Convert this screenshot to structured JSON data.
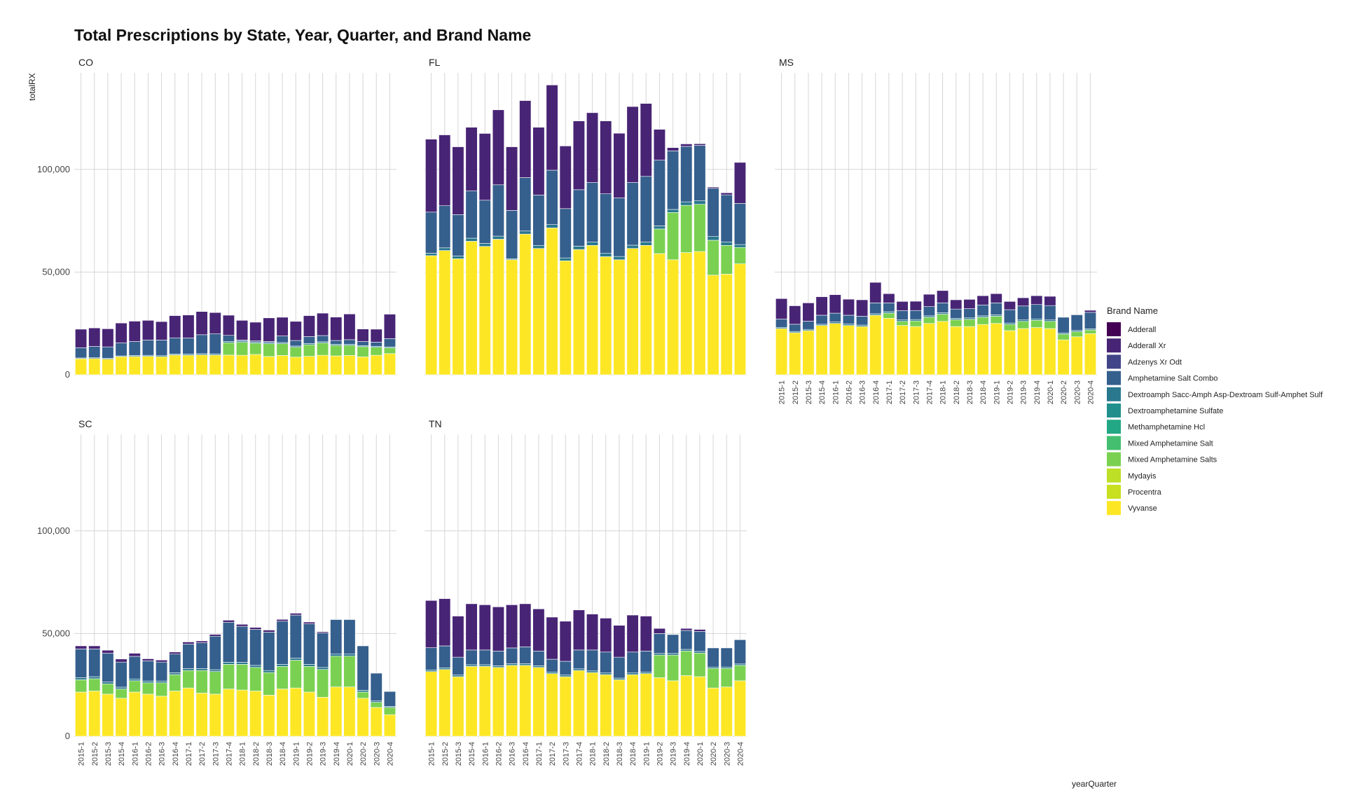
{
  "chart_data": {
    "type": "bar",
    "stacked": true,
    "title": "Total Prescriptions by State, Year, Quarter, and Brand Name",
    "xlabel": "yearQuarter",
    "ylabel": "totalRX",
    "ylim": [
      0,
      147000
    ],
    "yticks": [
      0,
      50000,
      100000
    ],
    "ytick_labels": [
      "0",
      "50,000",
      "100,000"
    ],
    "grid": true,
    "legend": {
      "title": "Brand Name",
      "position": "right",
      "entries": [
        {
          "name": "Adderall",
          "color": "#440154"
        },
        {
          "name": "Adderall Xr",
          "color": "#482475"
        },
        {
          "name": "Adzenys Xr Odt",
          "color": "#414487"
        },
        {
          "name": "Amphetamine Salt Combo",
          "color": "#355F8D"
        },
        {
          "name": "Dextroamph Sacc-Amph Asp-Dextroam Sulf-Amphet Sulf",
          "color": "#2A788E"
        },
        {
          "name": "Dextroamphetamine Sulfate",
          "color": "#21908D"
        },
        {
          "name": "Methamphetamine Hcl",
          "color": "#22A884"
        },
        {
          "name": "Mixed Amphetamine Salt",
          "color": "#44BF70"
        },
        {
          "name": "Mixed Amphetamine Salts",
          "color": "#7AD151"
        },
        {
          "name": "Mydayis",
          "color": "#BDDF26"
        },
        {
          "name": "Procentra",
          "color": "#C8E020"
        },
        {
          "name": "Vyvanse",
          "color": "#FDE725"
        }
      ]
    },
    "categories": [
      "2015-1",
      "2015-2",
      "2015-3",
      "2015-4",
      "2016-1",
      "2016-2",
      "2016-3",
      "2016-4",
      "2017-1",
      "2017-2",
      "2017-3",
      "2017-4",
      "2018-1",
      "2018-2",
      "2018-3",
      "2018-4",
      "2019-1",
      "2019-2",
      "2019-3",
      "2019-4",
      "2020-1",
      "2020-2",
      "2020-3",
      "2020-4"
    ],
    "panels": [
      {
        "state": "CO",
        "series": {
          "Vyvanse": [
            7800,
            7900,
            7600,
            8800,
            8900,
            9000,
            8800,
            9600,
            9500,
            9700,
            9600,
            9600,
            9500,
            9900,
            8900,
            9400,
            8600,
            9000,
            9500,
            9200,
            9400,
            8700,
            9500,
            10300
          ],
          "Mixed Amphetamine Salts": [
            0,
            0,
            0,
            0,
            0,
            0,
            0,
            0,
            0,
            0,
            0,
            6000,
            6300,
            5500,
            6200,
            5700,
            4800,
            5600,
            6000,
            5100,
            4900,
            5000,
            3900,
            2800
          ],
          "Dextroamph Sacc-Amph Asp-Dextroam Sulf-Amphet Sulf": [
            400,
            400,
            400,
            400,
            500,
            500,
            500,
            500,
            600,
            600,
            600,
            600,
            600,
            600,
            600,
            600,
            600,
            600,
            600,
            600,
            600,
            500,
            500,
            500
          ],
          "Amphetamine Salt Combo": [
            5000,
            5500,
            5600,
            6300,
            6800,
            7400,
            7600,
            7900,
            7800,
            9200,
            9700,
            3000,
            500,
            500,
            500,
            3200,
            2700,
            3400,
            3000,
            1800,
            2200,
            2000,
            2000,
            4000
          ],
          "Adderall Xr": [
            9000,
            9000,
            8800,
            9700,
            9900,
            9600,
            9000,
            10800,
            11200,
            11300,
            10400,
            9800,
            9600,
            9100,
            11500,
            9100,
            9300,
            10200,
            10900,
            11400,
            12500,
            6100,
            6300,
            11900
          ]
        }
      },
      {
        "state": "FL",
        "series": {
          "Vyvanse": [
            58000,
            60500,
            56500,
            65000,
            62500,
            66000,
            56000,
            68500,
            61500,
            71500,
            55500,
            61000,
            63000,
            57500,
            56000,
            61500,
            63000,
            59000,
            56000,
            59500,
            60000,
            48500,
            49000,
            54000
          ],
          "Mixed Amphetamine Salts": [
            0,
            0,
            0,
            0,
            0,
            0,
            0,
            0,
            0,
            0,
            0,
            0,
            0,
            0,
            0,
            0,
            0,
            12000,
            23000,
            23000,
            23000,
            17000,
            14000,
            8000
          ],
          "Dextroamph Sacc-Amph Asp-Dextroam Sulf-Amphet Sulf": [
            1200,
            1300,
            1300,
            1500,
            1500,
            1500,
            500,
            1500,
            1500,
            1600,
            1400,
            1600,
            1600,
            1600,
            1600,
            1600,
            1600,
            1500,
            1500,
            1700,
            1700,
            1800,
            1600,
            1400
          ],
          "Amphetamine Salt Combo": [
            20000,
            20500,
            20200,
            23000,
            21000,
            25000,
            23500,
            26000,
            24500,
            26500,
            24000,
            27500,
            29000,
            29000,
            28500,
            30500,
            32000,
            32000,
            28500,
            27000,
            27000,
            23500,
            23000,
            20000
          ],
          "Adderall Xr": [
            35500,
            34500,
            33000,
            31000,
            32500,
            36500,
            31000,
            37500,
            33000,
            41500,
            30500,
            33500,
            34000,
            35500,
            31500,
            37000,
            35500,
            15000,
            1600,
            1200,
            800,
            600,
            1000,
            20000
          ]
        }
      },
      {
        "state": "MS",
        "series": {
          "Vyvanse": [
            22500,
            20500,
            21500,
            24000,
            25000,
            24000,
            23500,
            29000,
            27500,
            24000,
            23500,
            25000,
            26000,
            23500,
            23500,
            24500,
            25000,
            21500,
            22500,
            23000,
            22500,
            17000,
            18500,
            20000
          ],
          "Mixed Amphetamine Salts": [
            0,
            0,
            0,
            0,
            0,
            0,
            0,
            0,
            2500,
            2000,
            2700,
            3000,
            3500,
            3300,
            3500,
            3500,
            3500,
            3000,
            3500,
            3500,
            3500,
            2800,
            2500,
            1800
          ],
          "Dextroamph Sacc-Amph Asp-Dextroam Sulf-Amphet Sulf": [
            600,
            600,
            600,
            600,
            700,
            700,
            700,
            700,
            700,
            700,
            700,
            700,
            700,
            700,
            700,
            700,
            700,
            700,
            700,
            700,
            700,
            600,
            600,
            600
          ],
          "Amphetamine Salt Combo": [
            4000,
            3500,
            4000,
            4400,
            4300,
            4300,
            4300,
            5300,
            4300,
            4500,
            4400,
            4500,
            4800,
            4500,
            4500,
            5300,
            5800,
            6500,
            6800,
            7000,
            7000,
            7600,
            7600,
            8000
          ],
          "Adderall Xr": [
            10000,
            9000,
            8900,
            9000,
            9000,
            7800,
            8000,
            10000,
            4500,
            4500,
            4500,
            6000,
            6000,
            4500,
            4500,
            4500,
            4500,
            4000,
            4000,
            4300,
            4500,
            0,
            0,
            1000
          ]
        }
      },
      {
        "state": "SC",
        "series": {
          "Vyvanse": [
            21500,
            22000,
            20500,
            18500,
            21500,
            20500,
            19500,
            22000,
            23500,
            21000,
            20500,
            23000,
            22500,
            22000,
            20000,
            23000,
            23500,
            21500,
            19000,
            24000,
            24000,
            18500,
            14000,
            10500
          ],
          "Mixed Amphetamine Salts": [
            6000,
            6000,
            5000,
            4500,
            5500,
            5500,
            6500,
            8000,
            8500,
            11000,
            11000,
            12000,
            12500,
            11500,
            11000,
            11000,
            13500,
            12500,
            13500,
            15000,
            15000,
            3000,
            2500,
            3500
          ],
          "Dextroamph Sacc-Amph Asp-Dextroam Sulf-Amphet Sulf": [
            1000,
            1000,
            900,
            900,
            900,
            900,
            900,
            900,
            900,
            900,
            900,
            1000,
            1000,
            1000,
            1000,
            1000,
            1000,
            1000,
            1000,
            1000,
            1000,
            900,
            700,
            500
          ],
          "Amphetamine Salt Combo": [
            14000,
            13500,
            14000,
            12200,
            11000,
            9800,
            9200,
            9100,
            12000,
            12600,
            16300,
            19500,
            17500,
            17500,
            18700,
            21000,
            21000,
            19700,
            16800,
            16800,
            16800,
            21600,
            13500,
            7300
          ],
          "Adderall Xr": [
            1500,
            1500,
            1500,
            1500,
            1500,
            1000,
            1000,
            1000,
            1000,
            900,
            900,
            1000,
            1000,
            1000,
            1000,
            900,
            900,
            900,
            600,
            0,
            0,
            0,
            0,
            0
          ]
        }
      },
      {
        "state": "TN",
        "series": {
          "Vyvanse": [
            31500,
            32500,
            29000,
            34000,
            34000,
            33500,
            34500,
            34500,
            33500,
            30500,
            29000,
            32000,
            31000,
            30000,
            27500,
            30000,
            30500,
            28500,
            27000,
            29500,
            29000,
            23500,
            24000,
            27000
          ],
          "Mixed Amphetamine Salts": [
            0,
            0,
            0,
            0,
            0,
            0,
            0,
            0,
            0,
            0,
            0,
            0,
            0,
            0,
            0,
            0,
            0,
            11000,
            12500,
            12000,
            11500,
            9500,
            9000,
            7500
          ],
          "Dextroamph Sacc-Amph Asp-Dextroam Sulf-Amphet Sulf": [
            800,
            800,
            800,
            800,
            800,
            800,
            800,
            800,
            800,
            800,
            800,
            800,
            800,
            800,
            800,
            800,
            800,
            800,
            800,
            800,
            800,
            700,
            700,
            700
          ],
          "Amphetamine Salt Combo": [
            10800,
            10700,
            8700,
            7200,
            7200,
            7200,
            7700,
            8200,
            7200,
            6200,
            6700,
            9200,
            10200,
            10200,
            10200,
            10200,
            10200,
            9700,
            9200,
            9200,
            9700,
            9300,
            9300,
            11800
          ],
          "Adderall Xr": [
            23000,
            23000,
            20000,
            22500,
            22000,
            21500,
            21000,
            21000,
            20500,
            20500,
            19500,
            19500,
            17500,
            16500,
            15500,
            18000,
            17000,
            2500,
            0,
            1000,
            1000,
            0,
            0,
            0
          ]
        }
      }
    ]
  }
}
